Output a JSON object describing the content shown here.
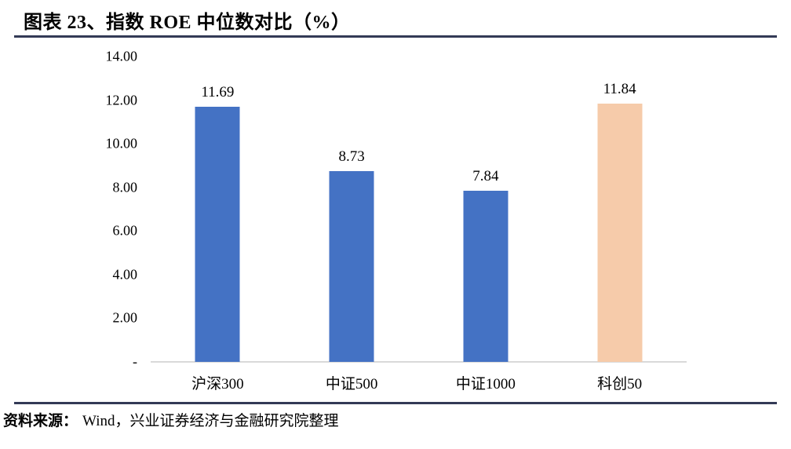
{
  "figure": {
    "title": "图表 23、指数 ROE 中位数对比（%）",
    "source": {
      "label": "资料来源：",
      "text": "Wind，兴业证券经济与金融研究院整理"
    }
  },
  "chart_data": {
    "type": "bar",
    "title": "指数 ROE 中位数对比（%）",
    "categories": [
      "沪深300",
      "中证500",
      "中证1000",
      "科创50"
    ],
    "values": [
      11.69,
      8.73,
      7.84,
      11.84
    ],
    "data_labels": [
      "11.69",
      "8.73",
      "7.84",
      "11.84"
    ],
    "bar_colors": [
      "#4472C4",
      "#4472C4",
      "#4472C4",
      "#F6CBAA"
    ],
    "xlabel": "",
    "ylabel": "",
    "ylim": [
      0,
      14
    ],
    "ytick_interval": 2,
    "yticks": [
      "14.00",
      "12.00",
      "10.00",
      "8.00",
      "6.00",
      "4.00",
      "2.00",
      "-"
    ],
    "grid": false,
    "legend": false,
    "data_label_position": "above-bar"
  },
  "colors": {
    "bar_blue": "#4472C4",
    "bar_peach": "#F6CBAA",
    "rule_navy": "#333A56",
    "axis_line": "#D9D9D9",
    "text": "#000000"
  }
}
